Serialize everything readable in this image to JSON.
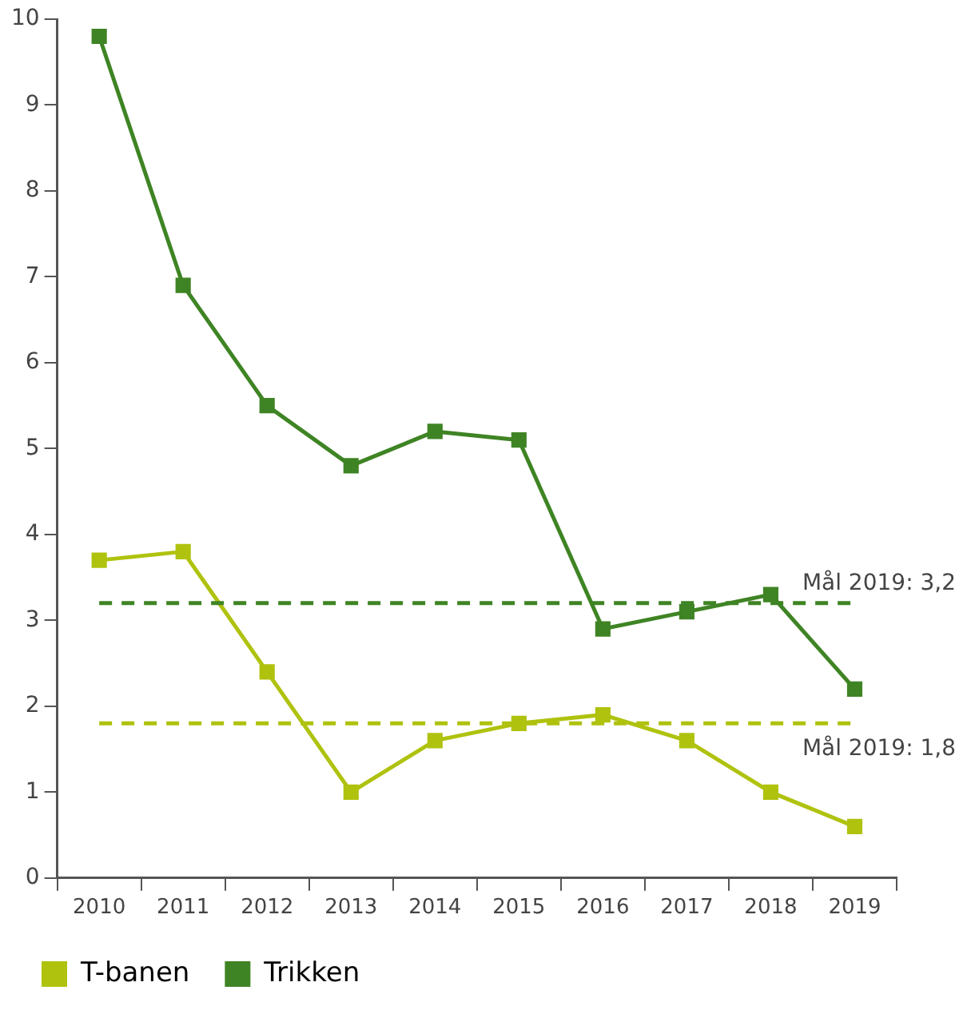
{
  "chart_data": {
    "type": "line",
    "categories": [
      "2010",
      "2011",
      "2012",
      "2013",
      "2014",
      "2015",
      "2016",
      "2017",
      "2018",
      "2019"
    ],
    "series": [
      {
        "name": "T-banen",
        "color": "#afc20e",
        "values": [
          3.7,
          3.8,
          2.4,
          1.0,
          1.6,
          1.8,
          1.9,
          1.6,
          1.0,
          0.6
        ]
      },
      {
        "name": "Trikken",
        "color": "#3f8424",
        "values": [
          9.8,
          6.9,
          5.5,
          4.8,
          5.2,
          5.1,
          2.9,
          3.1,
          3.3,
          2.2
        ]
      }
    ],
    "ylim": [
      0,
      10
    ],
    "yticks": [
      0,
      1,
      2,
      3,
      4,
      5,
      6,
      7,
      8,
      9,
      10
    ],
    "ref_lines": [
      {
        "axis": "y",
        "value": 3.2,
        "label": "Mål 2019: 3,2",
        "color": "#3f8424",
        "line_style": "dashed"
      },
      {
        "axis": "y",
        "value": 1.8,
        "label": "Mål 2019: 1,8",
        "color": "#afc20e",
        "line_style": "dashed"
      }
    ],
    "grid": false,
    "legend": "bottom left",
    "marker": "square",
    "line_style": "solid"
  }
}
